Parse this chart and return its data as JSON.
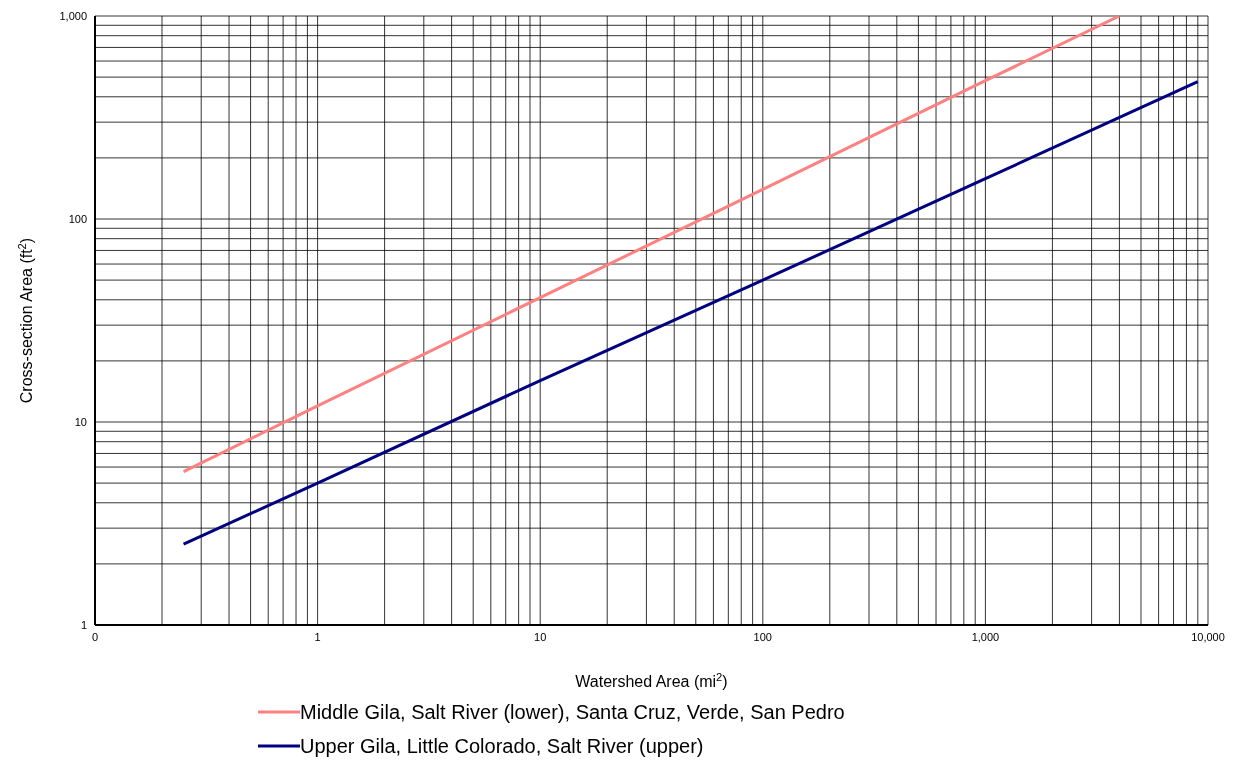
{
  "chart_data": {
    "type": "line",
    "xlabel": "Watershed  Area (mi$^{2}$)",
    "ylabel": "Cross-section Area (ft$^{2}$)",
    "log": "xy",
    "grid": true,
    "legend": "bottom",
    "marker": "none",
    "line_style": "solid",
    "xlim": [
      0.1,
      10000
    ],
    "ylim": [
      1,
      1000
    ],
    "xticks": [
      {
        "value": 0.1,
        "label": "0"
      },
      {
        "value": 0.2,
        "label": null
      },
      {
        "value": 0.3,
        "label": null
      },
      {
        "value": 0.4,
        "label": null
      },
      {
        "value": 0.5,
        "label": null
      },
      {
        "value": 0.6,
        "label": null
      },
      {
        "value": 0.7,
        "label": null
      },
      {
        "value": 0.8,
        "label": null
      },
      {
        "value": 0.9,
        "label": null
      },
      1,
      {
        "value": 2,
        "label": null
      },
      {
        "value": 3,
        "label": null
      },
      {
        "value": 4,
        "label": null
      },
      {
        "value": 5,
        "label": null
      },
      {
        "value": 6,
        "label": null
      },
      {
        "value": 7,
        "label": null
      },
      {
        "value": 8,
        "label": null
      },
      {
        "value": 9,
        "label": null
      },
      10,
      {
        "value": 20,
        "label": null
      },
      {
        "value": 30,
        "label": null
      },
      {
        "value": 40,
        "label": null
      },
      {
        "value": 50,
        "label": null
      },
      {
        "value": 60,
        "label": null
      },
      {
        "value": 70,
        "label": null
      },
      {
        "value": 80,
        "label": null
      },
      {
        "value": 90,
        "label": null
      },
      100,
      {
        "value": 200,
        "label": null
      },
      {
        "value": 300,
        "label": null
      },
      {
        "value": 400,
        "label": null
      },
      {
        "value": 500,
        "label": null
      },
      {
        "value": 600,
        "label": null
      },
      {
        "value": 700,
        "label": null
      },
      {
        "value": 800,
        "label": null
      },
      {
        "value": 900,
        "label": null
      },
      {
        "value": 1000,
        "label": "1,000"
      },
      {
        "value": 2000,
        "label": null
      },
      {
        "value": 3000,
        "label": null
      },
      {
        "value": 4000,
        "label": null
      },
      {
        "value": 5000,
        "label": null
      },
      {
        "value": 6000,
        "label": null
      },
      {
        "value": 7000,
        "label": null
      },
      {
        "value": 8000,
        "label": null
      },
      {
        "value": 9000,
        "label": null
      },
      {
        "value": 10000,
        "label": "10,000"
      }
    ],
    "yticks": [
      1,
      {
        "value": 2,
        "label": null
      },
      {
        "value": 3,
        "label": null
      },
      {
        "value": 4,
        "label": null
      },
      {
        "value": 5,
        "label": null
      },
      {
        "value": 6,
        "label": null
      },
      {
        "value": 7,
        "label": null
      },
      {
        "value": 8,
        "label": null
      },
      {
        "value": 9,
        "label": null
      },
      10,
      {
        "value": 20,
        "label": null
      },
      {
        "value": 30,
        "label": null
      },
      {
        "value": 40,
        "label": null
      },
      {
        "value": 50,
        "label": null
      },
      {
        "value": 60,
        "label": null
      },
      {
        "value": 70,
        "label": null
      },
      {
        "value": 80,
        "label": null
      },
      {
        "value": 90,
        "label": null
      },
      100,
      {
        "value": 200,
        "label": null
      },
      {
        "value": 300,
        "label": null
      },
      {
        "value": 400,
        "label": null
      },
      {
        "value": 500,
        "label": null
      },
      {
        "value": 600,
        "label": null
      },
      {
        "value": 700,
        "label": null
      },
      {
        "value": 800,
        "label": null
      },
      {
        "value": 900,
        "label": null
      },
      {
        "value": 1000,
        "label": "1,000"
      }
    ],
    "series": [
      {
        "name": "Middle Gila, Salt River (lower), Santa Cruz, Verde, San Pedro",
        "color": "#ff8080",
        "x": [
          0.25,
          1,
          10,
          100,
          1000,
          4000
        ],
        "values": [
          5.7,
          12,
          41,
          140,
          480,
          1000
        ]
      },
      {
        "name": "Upper Gila, Little Colorado, Salt River (upper)",
        "color": "#000080",
        "x": [
          0.25,
          1,
          10,
          100,
          1000,
          9000
        ],
        "values": [
          2.5,
          5,
          16,
          50,
          158,
          475
        ]
      }
    ]
  }
}
